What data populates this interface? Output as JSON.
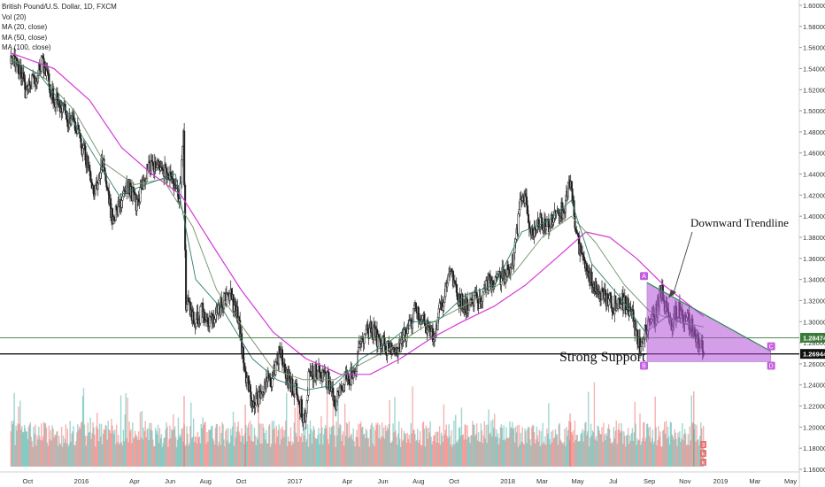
{
  "legend": {
    "title": "British Pound/U.S. Dollar, 1D, FXCM",
    "vol": "Vol (20)",
    "ma20": "MA (20, close)",
    "ma50": "MA (50, close)",
    "ma100": "MA (100, close)"
  },
  "annotations": {
    "trendline_label": "Downward Trendline",
    "support_label": "Strong Support"
  },
  "colors": {
    "up": "#26a69a",
    "down": "#ef5350",
    "ma20": "#2e7d6b",
    "ma50": "#7c9a76",
    "ma100": "#d63ad6",
    "triangle_fill": "#b24fd6",
    "price_label_green": "#3b7a3b",
    "price_label_black": "#111111"
  },
  "chart_data": {
    "type": "candlestick",
    "ylim": [
      1.16,
      1.6
    ],
    "y_ticks": [
      "1.60000",
      "1.58000",
      "1.56000",
      "1.54000",
      "1.52000",
      "1.50000",
      "1.48000",
      "1.46000",
      "1.44000",
      "1.42000",
      "1.40000",
      "1.38000",
      "1.36000",
      "1.34000",
      "1.32000",
      "1.30000",
      "1.28000",
      "1.26000",
      "1.24000",
      "1.22000",
      "1.20000",
      "1.18000",
      "1.16000"
    ],
    "x_ticks": [
      "Oct",
      "2016",
      "Apr",
      "Jun",
      "Aug",
      "Oct",
      "2017",
      "Apr",
      "Jun",
      "Aug",
      "Oct",
      "2018",
      "Mar",
      "May",
      "Jul",
      "Sep",
      "Nov",
      "2019",
      "Mar",
      "May"
    ],
    "x_tick_dates": [
      "2015-10-01",
      "2016-01-01",
      "2016-04-01",
      "2016-06-01",
      "2016-08-01",
      "2016-10-01",
      "2017-01-01",
      "2017-04-01",
      "2017-06-01",
      "2017-08-01",
      "2017-10-01",
      "2018-01-01",
      "2018-03-01",
      "2018-05-01",
      "2018-07-01",
      "2018-09-01",
      "2018-11-01",
      "2019-01-01",
      "2019-03-01",
      "2019-05-01"
    ],
    "price_path": [
      [
        "2015-09-01",
        1.545
      ],
      [
        "2015-09-10",
        1.55
      ],
      [
        "2015-09-25",
        1.52
      ],
      [
        "2015-10-10",
        1.53
      ],
      [
        "2015-10-25",
        1.545
      ],
      [
        "2015-11-10",
        1.515
      ],
      [
        "2015-11-25",
        1.505
      ],
      [
        "2015-12-10",
        1.49
      ],
      [
        "2015-12-25",
        1.48
      ],
      [
        "2016-01-10",
        1.45
      ],
      [
        "2016-01-20",
        1.42
      ],
      [
        "2016-02-05",
        1.45
      ],
      [
        "2016-02-20",
        1.4
      ],
      [
        "2016-03-05",
        1.41
      ],
      [
        "2016-03-20",
        1.43
      ],
      [
        "2016-04-05",
        1.41
      ],
      [
        "2016-04-20",
        1.44
      ],
      [
        "2016-05-05",
        1.45
      ],
      [
        "2016-05-20",
        1.445
      ],
      [
        "2016-06-05",
        1.44
      ],
      [
        "2016-06-15",
        1.41
      ],
      [
        "2016-06-23",
        1.48
      ],
      [
        "2016-06-27",
        1.32
      ],
      [
        "2016-07-10",
        1.3
      ],
      [
        "2016-07-25",
        1.31
      ],
      [
        "2016-08-10",
        1.3
      ],
      [
        "2016-08-25",
        1.315
      ],
      [
        "2016-09-10",
        1.33
      ],
      [
        "2016-09-25",
        1.3
      ],
      [
        "2016-10-07",
        1.25
      ],
      [
        "2016-10-20",
        1.22
      ],
      [
        "2016-11-05",
        1.24
      ],
      [
        "2016-11-20",
        1.245
      ],
      [
        "2016-12-05",
        1.27
      ],
      [
        "2016-12-20",
        1.245
      ],
      [
        "2017-01-05",
        1.23
      ],
      [
        "2017-01-16",
        1.205
      ],
      [
        "2017-01-25",
        1.255
      ],
      [
        "2017-02-10",
        1.25
      ],
      [
        "2017-02-25",
        1.245
      ],
      [
        "2017-03-10",
        1.22
      ],
      [
        "2017-03-25",
        1.245
      ],
      [
        "2017-04-10",
        1.25
      ],
      [
        "2017-04-25",
        1.285
      ],
      [
        "2017-05-10",
        1.295
      ],
      [
        "2017-05-25",
        1.28
      ],
      [
        "2017-06-10",
        1.275
      ],
      [
        "2017-06-25",
        1.27
      ],
      [
        "2017-07-10",
        1.29
      ],
      [
        "2017-07-25",
        1.31
      ],
      [
        "2017-08-10",
        1.3
      ],
      [
        "2017-08-25",
        1.285
      ],
      [
        "2017-09-10",
        1.32
      ],
      [
        "2017-09-22",
        1.35
      ],
      [
        "2017-10-10",
        1.32
      ],
      [
        "2017-10-25",
        1.315
      ],
      [
        "2017-11-10",
        1.32
      ],
      [
        "2017-11-25",
        1.335
      ],
      [
        "2017-12-10",
        1.34
      ],
      [
        "2017-12-25",
        1.345
      ],
      [
        "2018-01-10",
        1.36
      ],
      [
        "2018-01-25",
        1.425
      ],
      [
        "2018-02-10",
        1.385
      ],
      [
        "2018-02-25",
        1.395
      ],
      [
        "2018-03-10",
        1.39
      ],
      [
        "2018-03-25",
        1.41
      ],
      [
        "2018-04-05",
        1.405
      ],
      [
        "2018-04-17",
        1.435
      ],
      [
        "2018-04-30",
        1.375
      ],
      [
        "2018-05-15",
        1.35
      ],
      [
        "2018-05-30",
        1.33
      ],
      [
        "2018-06-15",
        1.325
      ],
      [
        "2018-06-30",
        1.315
      ],
      [
        "2018-07-15",
        1.32
      ],
      [
        "2018-07-30",
        1.31
      ],
      [
        "2018-08-15",
        1.275
      ],
      [
        "2018-08-28",
        1.3
      ],
      [
        "2018-09-10",
        1.305
      ],
      [
        "2018-09-20",
        1.33
      ],
      [
        "2018-10-05",
        1.3
      ],
      [
        "2018-10-20",
        1.31
      ],
      [
        "2018-11-01",
        1.3
      ],
      [
        "2018-11-10",
        1.3
      ],
      [
        "2018-11-22",
        1.28
      ],
      [
        "2018-12-03",
        1.275
      ]
    ],
    "moving_averages": {
      "ma20": [
        [
          "2015-09-01",
          1.548
        ],
        [
          "2015-10-20",
          1.535
        ],
        [
          "2015-12-01",
          1.505
        ],
        [
          "2016-01-20",
          1.46
        ],
        [
          "2016-03-05",
          1.42
        ],
        [
          "2016-04-20",
          1.43
        ],
        [
          "2016-06-10",
          1.44
        ],
        [
          "2016-07-15",
          1.34
        ],
        [
          "2016-09-01",
          1.31
        ],
        [
          "2016-10-20",
          1.265
        ],
        [
          "2016-12-01",
          1.245
        ],
        [
          "2017-01-20",
          1.235
        ],
        [
          "2017-03-10",
          1.24
        ],
        [
          "2017-04-25",
          1.265
        ],
        [
          "2017-06-10",
          1.28
        ],
        [
          "2017-07-25",
          1.3
        ],
        [
          "2017-09-01",
          1.3
        ],
        [
          "2017-10-20",
          1.325
        ],
        [
          "2017-12-10",
          1.335
        ],
        [
          "2018-01-25",
          1.385
        ],
        [
          "2018-03-10",
          1.395
        ],
        [
          "2018-04-20",
          1.415
        ],
        [
          "2018-05-25",
          1.355
        ],
        [
          "2018-07-10",
          1.325
        ],
        [
          "2018-08-25",
          1.29
        ],
        [
          "2018-10-01",
          1.305
        ],
        [
          "2018-11-15",
          1.295
        ],
        [
          "2018-12-03",
          1.285
        ]
      ],
      "ma50": [
        [
          "2015-09-01",
          1.55
        ],
        [
          "2015-11-01",
          1.53
        ],
        [
          "2015-12-20",
          1.5
        ],
        [
          "2016-02-10",
          1.45
        ],
        [
          "2016-04-01",
          1.43
        ],
        [
          "2016-05-20",
          1.435
        ],
        [
          "2016-07-10",
          1.39
        ],
        [
          "2016-08-20",
          1.33
        ],
        [
          "2016-10-10",
          1.29
        ],
        [
          "2016-11-25",
          1.255
        ],
        [
          "2017-01-15",
          1.245
        ],
        [
          "2017-03-10",
          1.245
        ],
        [
          "2017-04-25",
          1.26
        ],
        [
          "2017-06-15",
          1.275
        ],
        [
          "2017-08-10",
          1.295
        ],
        [
          "2017-10-01",
          1.31
        ],
        [
          "2017-11-20",
          1.325
        ],
        [
          "2018-01-10",
          1.345
        ],
        [
          "2018-03-01",
          1.38
        ],
        [
          "2018-04-20",
          1.4
        ],
        [
          "2018-06-01",
          1.375
        ],
        [
          "2018-07-20",
          1.335
        ],
        [
          "2018-09-01",
          1.31
        ],
        [
          "2018-10-20",
          1.3
        ],
        [
          "2018-12-03",
          1.295
        ]
      ],
      "ma100": [
        [
          "2015-09-01",
          1.555
        ],
        [
          "2015-11-15",
          1.54
        ],
        [
          "2016-01-15",
          1.51
        ],
        [
          "2016-03-10",
          1.465
        ],
        [
          "2016-05-01",
          1.44
        ],
        [
          "2016-06-20",
          1.42
        ],
        [
          "2016-08-10",
          1.375
        ],
        [
          "2016-10-01",
          1.33
        ],
        [
          "2016-11-25",
          1.29
        ],
        [
          "2017-01-20",
          1.265
        ],
        [
          "2017-03-20",
          1.25
        ],
        [
          "2017-05-10",
          1.25
        ],
        [
          "2017-07-01",
          1.265
        ],
        [
          "2017-08-25",
          1.285
        ],
        [
          "2017-10-15",
          1.3
        ],
        [
          "2017-12-10",
          1.315
        ],
        [
          "2018-02-01",
          1.335
        ],
        [
          "2018-03-25",
          1.36
        ],
        [
          "2018-05-15",
          1.385
        ],
        [
          "2018-06-25",
          1.38
        ],
        [
          "2018-08-10",
          1.36
        ],
        [
          "2018-09-25",
          1.335
        ],
        [
          "2018-11-10",
          1.315
        ],
        [
          "2018-12-03",
          1.305
        ]
      ]
    },
    "trendline": {
      "from": [
        "2018-08-28",
        1.337
      ],
      "to": [
        "2019-03-28",
        1.272
      ]
    },
    "support_line": 1.26944,
    "horizontal_line": 1.28474,
    "triangle": {
      "a": [
        "2018-08-28",
        1.337
      ],
      "b": [
        "2018-08-28",
        1.262
      ],
      "c": [
        "2019-03-28",
        1.272
      ],
      "d": [
        "2019-03-28",
        1.262
      ]
    },
    "triangle_labels": [
      "A",
      "B",
      "C",
      "D"
    ],
    "price_labels": [
      "1.28474",
      "1.26944"
    ],
    "volume_labels": [
      "3",
      "k",
      "k"
    ]
  }
}
